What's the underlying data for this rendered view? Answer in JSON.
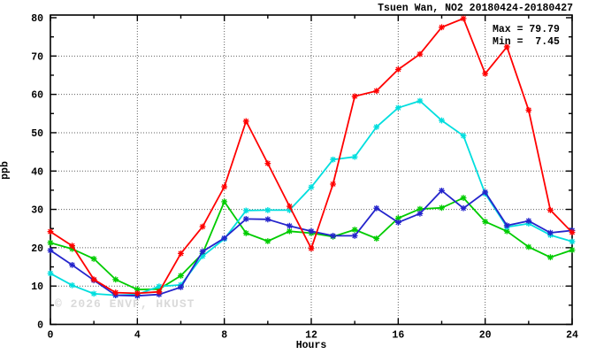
{
  "title": "Tsuen Wan, NO2 20180424-20180427",
  "annotation": {
    "max_label": "Max = 79.79",
    "min_label": "Min =  7.45"
  },
  "watermark": "© 2026 ENVF, HKUST",
  "chart_data": {
    "type": "line",
    "title": "Tsuen Wan, NO2 20180424-20180427",
    "xlabel": "Hours",
    "ylabel": "ppb",
    "xlim": [
      0,
      24
    ],
    "ylim": [
      0,
      80
    ],
    "x_major_ticks": [
      0,
      4,
      8,
      12,
      16,
      20,
      24
    ],
    "x_minor_ticks": [
      2,
      6,
      10,
      14,
      18,
      22
    ],
    "y_major_ticks": [
      0,
      10,
      20,
      30,
      40,
      50,
      60,
      70,
      80
    ],
    "y_minor_ticks": [
      5,
      15,
      25,
      35,
      45,
      55,
      65,
      75
    ],
    "grid": "dotted gridlines at major ticks, mirrored ticks on all four sides",
    "legend_position": "none",
    "marker": "asterisk",
    "x": [
      0,
      1,
      2,
      3,
      4,
      5,
      6,
      7,
      8,
      9,
      10,
      11,
      12,
      13,
      14,
      15,
      16,
      17,
      18,
      19,
      20,
      21,
      22,
      23,
      24
    ],
    "series": [
      {
        "name": "green",
        "color": "#00cc00",
        "values": [
          21.3,
          19.7,
          17.1,
          11.7,
          9.1,
          9.2,
          12.7,
          18.5,
          32.0,
          23.8,
          21.7,
          24.3,
          23.8,
          22.9,
          24.7,
          22.4,
          27.7,
          30.1,
          30.4,
          33.0,
          26.8,
          24.3,
          20.2,
          17.5,
          19.4
        ]
      },
      {
        "name": "cyan",
        "color": "#00dede",
        "values": [
          13.3,
          10.2,
          8.0,
          7.6,
          7.8,
          9.9,
          10.3,
          17.8,
          22.3,
          29.7,
          29.8,
          29.8,
          35.8,
          43.0,
          43.7,
          51.5,
          56.5,
          58.3,
          53.2,
          49.2,
          34.1,
          25.4,
          26.3,
          23.3,
          21.6
        ]
      },
      {
        "name": "blue",
        "color": "#2424cc",
        "values": [
          19.3,
          15.5,
          11.5,
          7.6,
          7.45,
          7.8,
          9.7,
          19.0,
          22.5,
          27.5,
          27.4,
          25.7,
          24.3,
          23.1,
          23.1,
          30.3,
          26.6,
          28.9,
          34.9,
          30.3,
          34.5,
          25.8,
          27.0,
          23.9,
          24.5
        ]
      },
      {
        "name": "red",
        "color": "#ff0000",
        "values": [
          24.2,
          20.5,
          11.7,
          8.3,
          8.1,
          8.5,
          18.5,
          25.5,
          35.9,
          53.0,
          42.0,
          30.8,
          19.8,
          36.6,
          59.5,
          60.9,
          66.5,
          70.5,
          77.5,
          79.79,
          65.4,
          72.4,
          55.9,
          29.8,
          24.0
        ]
      }
    ],
    "stats": {
      "max": 79.79,
      "min": 7.45
    }
  }
}
